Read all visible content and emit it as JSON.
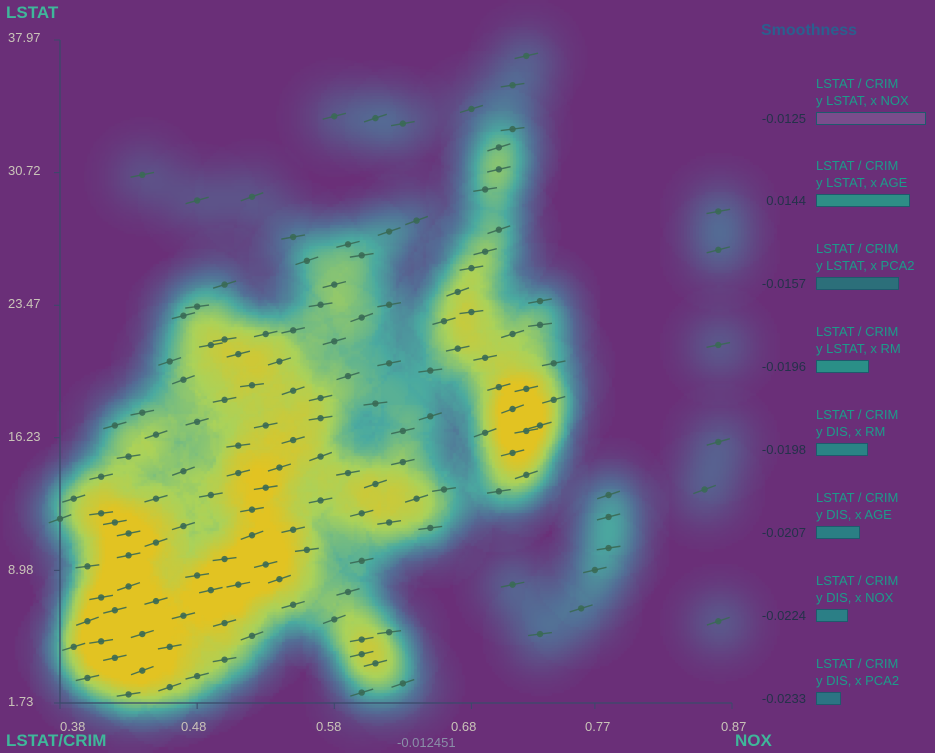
{
  "chart_data": {
    "type": "scatter",
    "xlabel": "NOX",
    "ylabel": "LSTAT",
    "corner_label": "LSTAT/CRIM",
    "center_value": "-0.012451",
    "x_ticks": [
      "0.38",
      "0.48",
      "0.58",
      "0.68",
      "0.77",
      "0.87"
    ],
    "y_ticks": [
      "37.97",
      "30.72",
      "23.47",
      "16.23",
      "8.98",
      "1.73"
    ],
    "xlim": [
      0.38,
      0.87
    ],
    "ylim": [
      1.73,
      37.97
    ],
    "colors": {
      "background": "#6a2f78",
      "low": "#5aa7a8",
      "mid": "#c4d85a",
      "high": "#e2c322",
      "mark": "#3a6a55",
      "axis": "#3a4a6a"
    },
    "points": [
      [
        0.4,
        6.2,
        0.45
      ],
      [
        0.41,
        7.5,
        0.5
      ],
      [
        0.42,
        6.8,
        0.5
      ],
      [
        0.43,
        8.1,
        0.5
      ],
      [
        0.41,
        5.1,
        0.45
      ],
      [
        0.42,
        4.2,
        0.5
      ],
      [
        0.44,
        5.5,
        0.5
      ],
      [
        0.4,
        9.2,
        0.5
      ],
      [
        0.43,
        9.8,
        0.5
      ],
      [
        0.45,
        7.3,
        0.5
      ],
      [
        0.44,
        3.5,
        0.5
      ],
      [
        0.46,
        4.8,
        0.5
      ],
      [
        0.47,
        6.5,
        0.5
      ],
      [
        0.45,
        10.5,
        0.5
      ],
      [
        0.48,
        8.7,
        0.5
      ],
      [
        0.49,
        7.9,
        0.5
      ],
      [
        0.47,
        11.4,
        0.45
      ],
      [
        0.5,
        9.6,
        0.5
      ],
      [
        0.51,
        8.2,
        0.5
      ],
      [
        0.5,
        6.1,
        0.5
      ],
      [
        0.52,
        10.9,
        0.5
      ],
      [
        0.52,
        12.3,
        0.5
      ],
      [
        0.53,
        9.3,
        0.5
      ],
      [
        0.54,
        8.5,
        0.5
      ],
      [
        0.53,
        13.5,
        0.45
      ],
      [
        0.55,
        11.2,
        0.5
      ],
      [
        0.54,
        14.6,
        0.45
      ],
      [
        0.56,
        10.1,
        0.45
      ],
      [
        0.57,
        12.8,
        0.45
      ],
      [
        0.55,
        7.1,
        0.45
      ],
      [
        0.52,
        5.4,
        0.45
      ],
      [
        0.5,
        4.1,
        0.45
      ],
      [
        0.48,
        3.2,
        0.45
      ],
      [
        0.46,
        2.6,
        0.45
      ],
      [
        0.43,
        2.2,
        0.45
      ],
      [
        0.4,
        3.1,
        0.45
      ],
      [
        0.39,
        4.8,
        0.45
      ],
      [
        0.51,
        15.8,
        0.45
      ],
      [
        0.53,
        16.9,
        0.45
      ],
      [
        0.55,
        16.1,
        0.4
      ],
      [
        0.57,
        15.2,
        0.4
      ],
      [
        0.59,
        14.3,
        0.45
      ],
      [
        0.6,
        12.1,
        0.45
      ],
      [
        0.61,
        13.7,
        0.45
      ],
      [
        0.62,
        11.6,
        0.45
      ],
      [
        0.63,
        14.9,
        0.4
      ],
      [
        0.64,
        12.9,
        0.4
      ],
      [
        0.65,
        11.3,
        0.4
      ],
      [
        0.6,
        9.5,
        0.4
      ],
      [
        0.59,
        7.8,
        0.4
      ],
      [
        0.58,
        6.3,
        0.4
      ],
      [
        0.6,
        5.2,
        0.4
      ],
      [
        0.61,
        3.9,
        0.4
      ],
      [
        0.63,
        2.8,
        0.35
      ],
      [
        0.66,
        13.4,
        0.4
      ],
      [
        0.57,
        18.4,
        0.35
      ],
      [
        0.59,
        19.6,
        0.35
      ],
      [
        0.61,
        18.1,
        0.35
      ],
      [
        0.62,
        20.3,
        0.35
      ],
      [
        0.58,
        21.5,
        0.35
      ],
      [
        0.6,
        22.8,
        0.35
      ],
      [
        0.62,
        23.5,
        0.35
      ],
      [
        0.58,
        24.6,
        0.35
      ],
      [
        0.56,
        25.9,
        0.35
      ],
      [
        0.6,
        26.2,
        0.35
      ],
      [
        0.53,
        21.9,
        0.4
      ],
      [
        0.54,
        20.4,
        0.4
      ],
      [
        0.52,
        19.1,
        0.45
      ],
      [
        0.5,
        18.3,
        0.45
      ],
      [
        0.48,
        17.1,
        0.45
      ],
      [
        0.47,
        19.4,
        0.4
      ],
      [
        0.49,
        21.3,
        0.35
      ],
      [
        0.47,
        22.9,
        0.35
      ],
      [
        0.45,
        16.4,
        0.4
      ],
      [
        0.43,
        15.2,
        0.45
      ],
      [
        0.41,
        14.1,
        0.45
      ],
      [
        0.39,
        12.9,
        0.45
      ],
      [
        0.41,
        12.1,
        0.45
      ],
      [
        0.43,
        11.0,
        0.45
      ],
      [
        0.45,
        12.9,
        0.45
      ],
      [
        0.47,
        14.4,
        0.45
      ],
      [
        0.49,
        13.1,
        0.45
      ],
      [
        0.51,
        14.3,
        0.45
      ],
      [
        0.55,
        18.8,
        0.4
      ],
      [
        0.57,
        17.3,
        0.4
      ],
      [
        0.63,
        16.6,
        0.35
      ],
      [
        0.65,
        17.4,
        0.35
      ],
      [
        0.65,
        19.9,
        0.35
      ],
      [
        0.67,
        21.1,
        0.35
      ],
      [
        0.66,
        22.6,
        0.4
      ],
      [
        0.67,
        24.2,
        0.4
      ],
      [
        0.68,
        25.5,
        0.4
      ],
      [
        0.69,
        26.4,
        0.4
      ],
      [
        0.7,
        27.6,
        0.4
      ],
      [
        0.69,
        29.8,
        0.4
      ],
      [
        0.7,
        30.9,
        0.4
      ],
      [
        0.7,
        32.1,
        0.35
      ],
      [
        0.68,
        23.1,
        0.45
      ],
      [
        0.69,
        20.6,
        0.45
      ],
      [
        0.7,
        19.0,
        0.45
      ],
      [
        0.71,
        17.8,
        0.5
      ],
      [
        0.72,
        16.6,
        0.5
      ],
      [
        0.71,
        15.4,
        0.5
      ],
      [
        0.72,
        14.2,
        0.45
      ],
      [
        0.7,
        13.3,
        0.45
      ],
      [
        0.72,
        18.9,
        0.45
      ],
      [
        0.71,
        21.9,
        0.4
      ],
      [
        0.73,
        22.4,
        0.35
      ],
      [
        0.74,
        20.3,
        0.35
      ],
      [
        0.73,
        16.9,
        0.35
      ],
      [
        0.69,
        16.5,
        0.4
      ],
      [
        0.73,
        23.7,
        0.35
      ],
      [
        0.78,
        11.9,
        0.3
      ],
      [
        0.78,
        13.1,
        0.3
      ],
      [
        0.78,
        10.2,
        0.3
      ],
      [
        0.77,
        9.0,
        0.3
      ],
      [
        0.76,
        6.9,
        0.3
      ],
      [
        0.73,
        5.5,
        0.3
      ],
      [
        0.71,
        8.2,
        0.3
      ],
      [
        0.74,
        18.3,
        0.3
      ],
      [
        0.64,
        28.1,
        0.25
      ],
      [
        0.63,
        33.4,
        0.2
      ],
      [
        0.58,
        33.8,
        0.2
      ],
      [
        0.61,
        33.7,
        0.2
      ],
      [
        0.71,
        35.5,
        0.2
      ],
      [
        0.72,
        37.1,
        0.2
      ],
      [
        0.68,
        34.2,
        0.2
      ],
      [
        0.71,
        33.1,
        0.2
      ],
      [
        0.44,
        30.6,
        0.2
      ],
      [
        0.48,
        29.2,
        0.2
      ],
      [
        0.52,
        29.4,
        0.2
      ],
      [
        0.55,
        27.2,
        0.25
      ],
      [
        0.59,
        26.8,
        0.25
      ],
      [
        0.62,
        27.5,
        0.25
      ],
      [
        0.57,
        23.5,
        0.3
      ],
      [
        0.55,
        22.1,
        0.3
      ],
      [
        0.5,
        24.6,
        0.3
      ],
      [
        0.48,
        23.4,
        0.3
      ],
      [
        0.44,
        17.6,
        0.3
      ],
      [
        0.42,
        16.9,
        0.3
      ],
      [
        0.38,
        11.8,
        0.3
      ],
      [
        0.42,
        11.6,
        0.35
      ],
      [
        0.51,
        20.8,
        0.35
      ],
      [
        0.46,
        20.4,
        0.35
      ],
      [
        0.5,
        21.6,
        0.35
      ],
      [
        0.6,
        4.4,
        0.3
      ],
      [
        0.6,
        2.3,
        0.25
      ],
      [
        0.62,
        5.6,
        0.3
      ],
      [
        0.86,
        21.3,
        0.25
      ],
      [
        0.86,
        16.0,
        0.25
      ],
      [
        0.85,
        13.4,
        0.25
      ],
      [
        0.86,
        28.6,
        0.25
      ],
      [
        0.86,
        26.5,
        0.25
      ],
      [
        0.86,
        6.2,
        0.25
      ]
    ]
  },
  "legend": {
    "title": "Smoothness",
    "items": [
      {
        "line1": "LSTAT / CRIM",
        "line2": "y LSTAT, x NOX",
        "value": "-0.0125",
        "frac": 1.0,
        "color": "#7a4d8c"
      },
      {
        "line1": "LSTAT / CRIM",
        "line2": "y LSTAT, x AGE",
        "value": "0.0144",
        "frac": 0.85,
        "color": "#2e8e86"
      },
      {
        "line1": "LSTAT / CRIM",
        "line2": "y LSTAT, x PCA2",
        "value": "-0.0157",
        "frac": 0.75,
        "color": "#2c6f7a"
      },
      {
        "line1": "LSTAT / CRIM",
        "line2": "y LSTAT, x RM",
        "value": "-0.0196",
        "frac": 0.47,
        "color": "#2a8f87"
      },
      {
        "line1": "LSTAT / CRIM",
        "line2": "y DIS, x RM",
        "value": "-0.0198",
        "frac": 0.46,
        "color": "#2a8385"
      },
      {
        "line1": "LSTAT / CRIM",
        "line2": "y DIS, x AGE",
        "value": "-0.0207",
        "frac": 0.39,
        "color": "#2a7f84"
      },
      {
        "line1": "LSTAT / CRIM",
        "line2": "y DIS, x NOX",
        "value": "-0.0224",
        "frac": 0.28,
        "color": "#2b7f86"
      },
      {
        "line1": "LSTAT / CRIM",
        "line2": "y DIS, x PCA2",
        "value": "-0.0233",
        "frac": 0.21,
        "color": "#2b7483"
      }
    ]
  }
}
